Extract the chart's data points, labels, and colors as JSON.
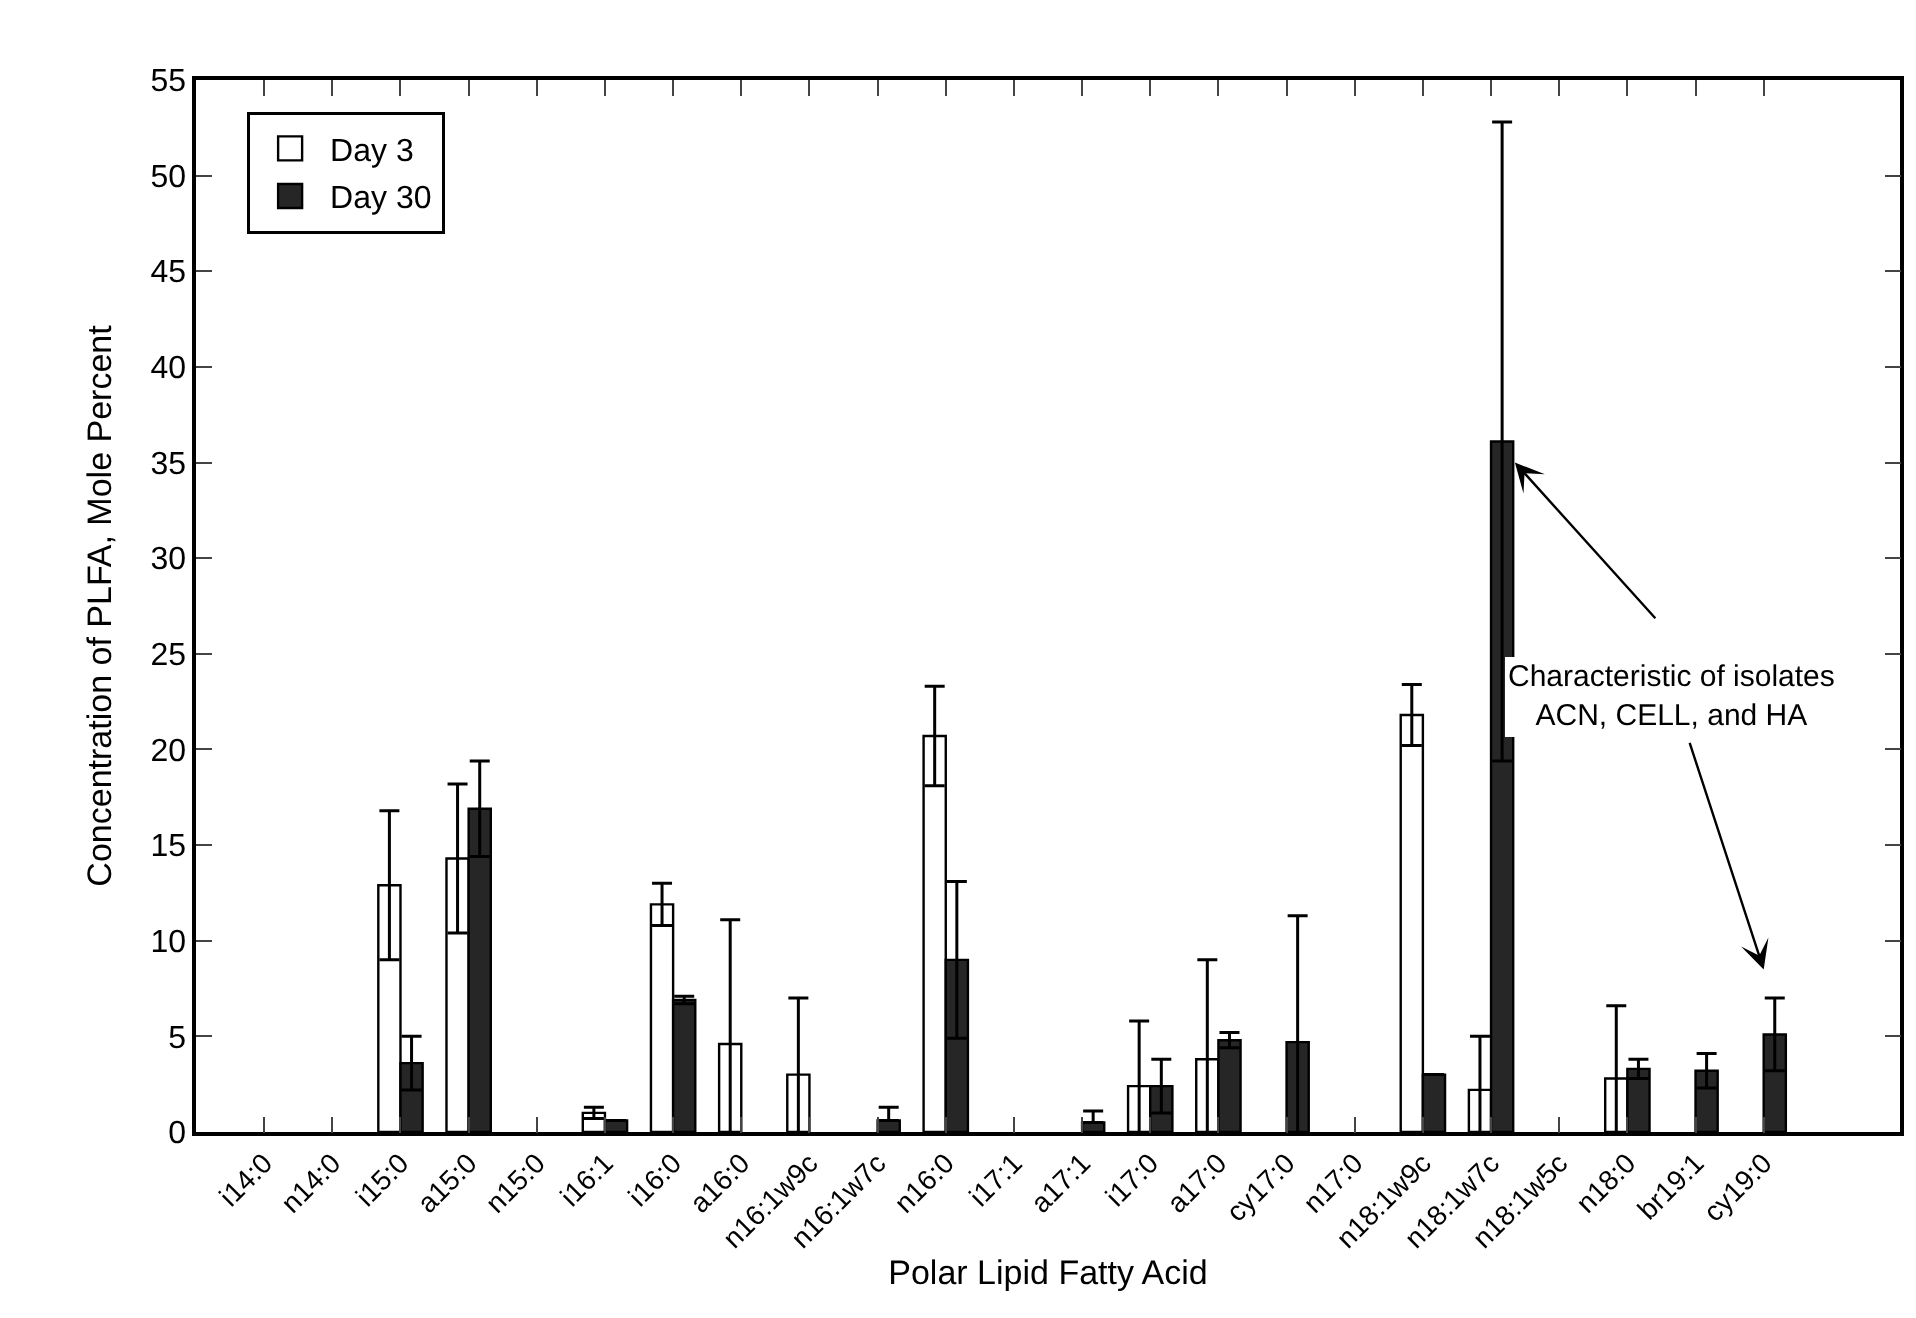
{
  "chart_data": {
    "type": "bar",
    "xlabel": "Polar Lipid Fatty Acid",
    "ylabel": "Concentration of PLFA, Mole Percent",
    "categories": [
      "i14:0",
      "n14:0",
      "i15:0",
      "a15:0",
      "n15:0",
      "i16:1",
      "i16:0",
      "a16:0",
      "n16:1w9c",
      "n16:1w7c",
      "n16:0",
      "i17:1",
      "a17:1",
      "i17:0",
      "a17:0",
      "cy17:0",
      "n17:0",
      "n18:1w9c",
      "n18:1w7c",
      "n18:1w5c",
      "n18:0",
      "br19:1",
      "cy19:0",
      null
    ],
    "series": [
      {
        "name": "Day 3",
        "color": "#ffffff",
        "values": [
          null,
          null,
          12.9,
          14.3,
          null,
          1.0,
          11.9,
          4.6,
          3.0,
          null,
          20.7,
          null,
          null,
          2.4,
          3.8,
          null,
          null,
          21.8,
          2.2,
          null,
          2.8,
          null,
          null,
          null
        ],
        "errors": [
          null,
          null,
          3.9,
          3.9,
          null,
          0.3,
          1.1,
          6.5,
          4.0,
          null,
          2.6,
          null,
          null,
          3.4,
          5.2,
          null,
          null,
          1.6,
          2.8,
          null,
          3.8,
          null,
          null,
          null
        ]
      },
      {
        "name": "Day 30",
        "color": "#262626",
        "values": [
          null,
          null,
          3.6,
          16.9,
          null,
          0.6,
          6.9,
          null,
          null,
          0.6,
          9.0,
          null,
          0.5,
          2.4,
          4.8,
          4.7,
          null,
          3.0,
          36.1,
          null,
          3.3,
          3.2,
          5.1,
          null
        ],
        "errors": [
          null,
          null,
          1.4,
          2.5,
          null,
          null,
          0.2,
          null,
          null,
          [
            0.6,
            1.3
          ],
          4.1,
          null,
          [
            0.5,
            1.1
          ],
          1.4,
          0.4,
          6.6,
          null,
          null,
          16.7,
          null,
          0.5,
          0.9,
          1.9,
          null
        ]
      }
    ],
    "ylim": [
      0,
      55
    ],
    "yticks": [
      0,
      5,
      10,
      15,
      20,
      25,
      30,
      35,
      40,
      45,
      50,
      55
    ],
    "legend": "top left",
    "annotations": [
      "Characteristic of isolates\nACN, CELL, and HA"
    ]
  }
}
